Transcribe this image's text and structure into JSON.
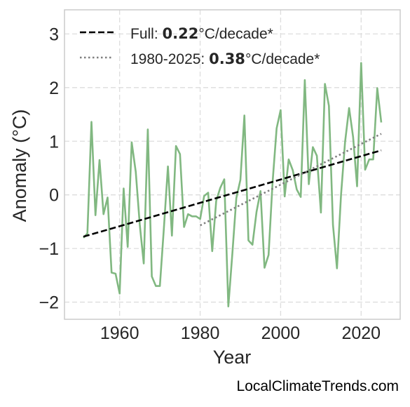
{
  "chart_data": {
    "type": "line",
    "title": "",
    "xlabel": "Year",
    "ylabel": "Anomaly (°C)",
    "xlim": [
      1946.3,
      2029.7
    ],
    "ylim": [
      -2.32,
      3.45
    ],
    "x_ticks": [
      1960,
      1980,
      2000,
      2020
    ],
    "x_tick_labels": [
      "1960",
      "1980",
      "2000",
      "2020"
    ],
    "y_ticks": [
      -2,
      -1,
      0,
      1,
      2,
      3
    ],
    "y_tick_labels": [
      "−2",
      "−1",
      "0",
      "1",
      "2",
      "3"
    ],
    "grid": true,
    "legend_placement": "top-left",
    "series": [
      {
        "color": "#81b881",
        "style": "solid",
        "x": [
          1951,
          1952,
          1953,
          1954,
          1955,
          1956,
          1957,
          1958,
          1959,
          1960,
          1961,
          1962,
          1963,
          1964,
          1965,
          1966,
          1967,
          1968,
          1969,
          1970,
          1971,
          1972,
          1973,
          1974,
          1975,
          1976,
          1977,
          1978,
          1979,
          1980,
          1981,
          1982,
          1983,
          1984,
          1985,
          1986,
          1987,
          1988,
          1989,
          1990,
          1991,
          1992,
          1993,
          1994,
          1995,
          1996,
          1997,
          1998,
          1999,
          2000,
          2001,
          2002,
          2003,
          2004,
          2005,
          2006,
          2007,
          2008,
          2009,
          2010,
          2011,
          2012,
          2013,
          2014,
          2015,
          2016,
          2017,
          2018,
          2019,
          2020,
          2021,
          2022,
          2023,
          2024,
          2025
        ],
        "y": [
          -0.8,
          -0.72,
          1.36,
          -0.38,
          0.65,
          -0.36,
          -0.05,
          -1.45,
          -1.47,
          -1.84,
          0.12,
          -0.97,
          0.98,
          0.43,
          -0.55,
          -1.28,
          1.22,
          -1.52,
          -1.7,
          -1.7,
          -0.61,
          0.53,
          -0.76,
          0.91,
          0.76,
          -0.6,
          -0.36,
          -0.4,
          -0.4,
          -0.45,
          -0.02,
          0.04,
          -1.05,
          -0.11,
          0.13,
          0.29,
          -2.08,
          -1.1,
          -0.06,
          0.28,
          1.48,
          -0.85,
          -0.93,
          -0.32,
          0.07,
          -1.36,
          -1.12,
          0.23,
          1.24,
          1.58,
          -0.03,
          0.66,
          0.46,
          0.1,
          -0.04,
          2.14,
          0.2,
          0.89,
          0.73,
          -0.33,
          2.07,
          1.66,
          -0.56,
          -1.37,
          0.0,
          0.98,
          1.62,
          1.08,
          0.16,
          2.46,
          0.47,
          0.66,
          0.66,
          1.99,
          1.35
        ]
      },
      {
        "name": "Full",
        "color": "#000000",
        "style": "dashed",
        "rate": "0.22",
        "unit": "°C/decade*",
        "x": [
          1951,
          2025
        ],
        "y": [
          -0.78,
          0.83
        ]
      },
      {
        "name": "1980-2025",
        "color": "#7f7f7f",
        "style": "dotted",
        "rate": "0.38",
        "unit": "°C/decade*",
        "x": [
          1980,
          2025
        ],
        "y": [
          -0.57,
          1.14
        ]
      }
    ]
  },
  "legend": {
    "full_prefix": "Full: ",
    "full_rate": "0.22",
    "full_unit": "°C/decade*",
    "recent_prefix": "1980-2025: ",
    "recent_rate": "0.38",
    "recent_unit": "°C/decade*"
  },
  "credit": "LocalClimateTrends.com"
}
